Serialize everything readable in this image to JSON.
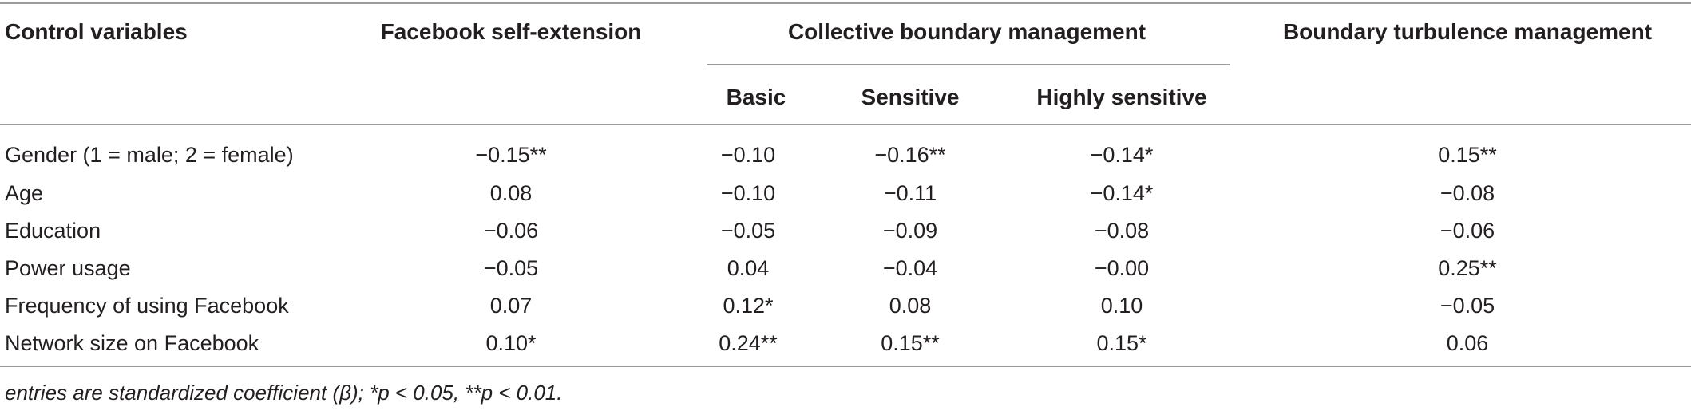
{
  "table": {
    "header": {
      "control_variables": "Control variables",
      "facebook_self_extension": "Facebook self-extension",
      "collective_boundary_management": "Collective boundary management",
      "boundary_turbulence_management": "Boundary turbulence management",
      "sub": {
        "basic": "Basic",
        "sensitive": "Sensitive",
        "highly_sensitive": "Highly sensitive"
      }
    },
    "rows": [
      {
        "label": "Gender (1 = male; 2 = female)",
        "fse": "−0.15**",
        "basic": "−0.10",
        "sensitive": "−0.16**",
        "highly": "−0.14*",
        "btm": "0.15**"
      },
      {
        "label": "Age",
        "fse": "0.08",
        "basic": "−0.10",
        "sensitive": "−0.11",
        "highly": "−0.14*",
        "btm": "−0.08"
      },
      {
        "label": "Education",
        "fse": "−0.06",
        "basic": "−0.05",
        "sensitive": "−0.09",
        "highly": "−0.08",
        "btm": "−0.06"
      },
      {
        "label": "Power usage",
        "fse": "−0.05",
        "basic": "0.04",
        "sensitive": "−0.04",
        "highly": "−0.00",
        "btm": "0.25**"
      },
      {
        "label": "Frequency of using Facebook",
        "fse": "0.07",
        "basic": "0.12*",
        "sensitive": "0.08",
        "highly": "0.10",
        "btm": "−0.05"
      },
      {
        "label": "Network size on Facebook",
        "fse": "0.10*",
        "basic": "0.24**",
        "sensitive": "0.15**",
        "highly": "0.15*",
        "btm": "0.06"
      }
    ],
    "footnote": "entries are standardized coefficient (β); *p < 0.05, **p < 0.01."
  }
}
